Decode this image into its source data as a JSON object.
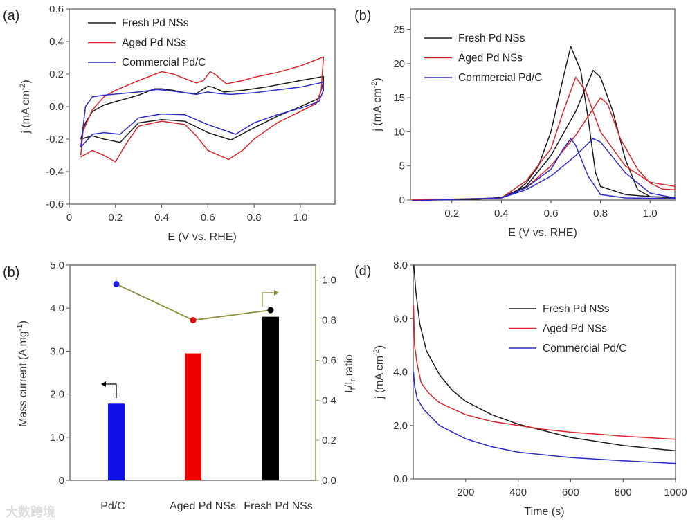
{
  "watermark": "大数跨境",
  "colors": {
    "fresh": "#1a1a1a",
    "aged": "#d8262b",
    "commercial": "#2a2ac8",
    "ratio_line": "#8c8c3c"
  },
  "chart_data": [
    {
      "panel_label": "(a)",
      "type": "line",
      "xlabel": "E (V vs. RHE)",
      "ylabel": "j (mA cm",
      "ylabel_sup": "-2",
      "ylabel_end": ")",
      "xlim": [
        0,
        1.15
      ],
      "ylim": [
        -0.6,
        0.6
      ],
      "xticks": [
        {
          "v": 0,
          "label": "0"
        },
        {
          "v": 0.2,
          "label": "0.2"
        },
        {
          "v": 0.4,
          "label": "0.4"
        },
        {
          "v": 0.6,
          "label": "0.6"
        },
        {
          "v": 0.8,
          "label": "0.8"
        },
        {
          "v": 1.0,
          "label": "1.0"
        }
      ],
      "yticks": [
        {
          "v": -0.6,
          "label": "-0.6"
        },
        {
          "v": -0.4,
          "label": "-0.4"
        },
        {
          "v": -0.2,
          "label": "-0.2"
        },
        {
          "v": 0,
          "label": "0.0"
        },
        {
          "v": 0.2,
          "label": "0.2"
        },
        {
          "v": 0.4,
          "label": "0.4"
        },
        {
          "v": 0.6,
          "label": "0.6"
        }
      ],
      "legend_position": "top-left",
      "series": [
        {
          "name": "Fresh Pd NSs",
          "color_key": "fresh",
          "points": [
            [
              0.05,
              -0.2
            ],
            [
              0.07,
              -0.1
            ],
            [
              0.1,
              -0.03
            ],
            [
              0.15,
              0.01
            ],
            [
              0.2,
              0.03
            ],
            [
              0.3,
              0.07
            ],
            [
              0.37,
              0.11
            ],
            [
              0.4,
              0.11
            ],
            [
              0.45,
              0.1
            ],
            [
              0.5,
              0.085
            ],
            [
              0.55,
              0.08
            ],
            [
              0.6,
              0.125
            ],
            [
              0.62,
              0.12
            ],
            [
              0.67,
              0.09
            ],
            [
              0.75,
              0.1
            ],
            [
              0.85,
              0.12
            ],
            [
              1.0,
              0.16
            ],
            [
              1.1,
              0.185
            ],
            [
              1.1,
              0.15
            ],
            [
              1.08,
              0.05
            ],
            [
              1.0,
              0.0
            ],
            [
              0.9,
              -0.06
            ],
            [
              0.8,
              -0.13
            ],
            [
              0.7,
              -0.205
            ],
            [
              0.6,
              -0.16
            ],
            [
              0.5,
              -0.09
            ],
            [
              0.4,
              -0.08
            ],
            [
              0.3,
              -0.1
            ],
            [
              0.22,
              -0.22
            ],
            [
              0.15,
              -0.2
            ],
            [
              0.1,
              -0.18
            ],
            [
              0.05,
              -0.2
            ]
          ]
        },
        {
          "name": "Aged Pd NSs",
          "color_key": "aged",
          "points": [
            [
              0.05,
              -0.3
            ],
            [
              0.06,
              -0.15
            ],
            [
              0.1,
              -0.02
            ],
            [
              0.15,
              0.06
            ],
            [
              0.2,
              0.1
            ],
            [
              0.3,
              0.16
            ],
            [
              0.4,
              0.215
            ],
            [
              0.45,
              0.2
            ],
            [
              0.55,
              0.145
            ],
            [
              0.58,
              0.16
            ],
            [
              0.61,
              0.215
            ],
            [
              0.63,
              0.2
            ],
            [
              0.68,
              0.14
            ],
            [
              0.75,
              0.16
            ],
            [
              0.8,
              0.18
            ],
            [
              0.9,
              0.21
            ],
            [
              1.0,
              0.25
            ],
            [
              1.1,
              0.305
            ],
            [
              1.1,
              0.3
            ],
            [
              1.09,
              0.1
            ],
            [
              1.07,
              0.02
            ],
            [
              1.0,
              -0.03
            ],
            [
              0.9,
              -0.1
            ],
            [
              0.8,
              -0.2
            ],
            [
              0.75,
              -0.27
            ],
            [
              0.69,
              -0.325
            ],
            [
              0.6,
              -0.27
            ],
            [
              0.55,
              -0.18
            ],
            [
              0.5,
              -0.11
            ],
            [
              0.4,
              -0.09
            ],
            [
              0.3,
              -0.12
            ],
            [
              0.25,
              -0.22
            ],
            [
              0.2,
              -0.34
            ],
            [
              0.15,
              -0.3
            ],
            [
              0.1,
              -0.27
            ],
            [
              0.05,
              -0.31
            ]
          ]
        },
        {
          "name": "Commercial Pd/C",
          "color_key": "commercial",
          "points": [
            [
              0.05,
              -0.25
            ],
            [
              0.07,
              0.0
            ],
            [
              0.1,
              0.06
            ],
            [
              0.15,
              0.07
            ],
            [
              0.3,
              0.09
            ],
            [
              0.38,
              0.105
            ],
            [
              0.45,
              0.095
            ],
            [
              0.55,
              0.075
            ],
            [
              0.6,
              0.09
            ],
            [
              0.65,
              0.08
            ],
            [
              0.7,
              0.075
            ],
            [
              0.8,
              0.085
            ],
            [
              1.0,
              0.12
            ],
            [
              1.1,
              0.15
            ],
            [
              1.1,
              0.1
            ],
            [
              1.08,
              0.03
            ],
            [
              1.0,
              -0.01
            ],
            [
              0.9,
              -0.05
            ],
            [
              0.8,
              -0.1
            ],
            [
              0.72,
              -0.17
            ],
            [
              0.6,
              -0.11
            ],
            [
              0.5,
              -0.05
            ],
            [
              0.4,
              -0.045
            ],
            [
              0.3,
              -0.07
            ],
            [
              0.22,
              -0.17
            ],
            [
              0.15,
              -0.16
            ],
            [
              0.1,
              -0.17
            ],
            [
              0.05,
              -0.25
            ]
          ]
        }
      ]
    },
    {
      "panel_label": "(b)",
      "type": "line",
      "xlabel": "E (V vs. RHE)",
      "ylabel": "j (mA cm",
      "ylabel_sup": "-2",
      "ylabel_end": ")",
      "xlim": [
        0.033,
        1.1
      ],
      "ylim": [
        0,
        28
      ],
      "xticks": [
        {
          "v": 0.2,
          "label": "0.2"
        },
        {
          "v": 0.4,
          "label": "0.4"
        },
        {
          "v": 0.6,
          "label": "0.6"
        },
        {
          "v": 0.8,
          "label": "0.8"
        },
        {
          "v": 1.0,
          "label": "1.0"
        }
      ],
      "yticks": [
        {
          "v": 0,
          "label": "0"
        },
        {
          "v": 5,
          "label": "5"
        },
        {
          "v": 10,
          "label": "10"
        },
        {
          "v": 15,
          "label": "15"
        },
        {
          "v": 20,
          "label": "20"
        },
        {
          "v": 25,
          "label": "25"
        }
      ],
      "legend_position": "top-left",
      "series": [
        {
          "name": "Fresh Pd NSs",
          "color_key": "fresh",
          "points": [
            [
              0.04,
              0
            ],
            [
              0.3,
              0.1
            ],
            [
              0.4,
              0.4
            ],
            [
              0.5,
              2
            ],
            [
              0.6,
              6.5
            ],
            [
              0.7,
              13
            ],
            [
              0.77,
              19
            ],
            [
              0.8,
              18
            ],
            [
              0.85,
              13
            ],
            [
              0.9,
              6
            ],
            [
              0.95,
              1.5
            ],
            [
              1.0,
              0.5
            ],
            [
              1.1,
              0.3
            ],
            [
              1.1,
              0.4
            ],
            [
              1.0,
              0.5
            ],
            [
              0.9,
              0.8
            ],
            [
              0.8,
              2
            ],
            [
              0.78,
              4
            ],
            [
              0.75,
              12
            ],
            [
              0.72,
              19
            ],
            [
              0.68,
              22.5
            ],
            [
              0.65,
              18
            ],
            [
              0.6,
              10
            ],
            [
              0.55,
              5
            ],
            [
              0.5,
              2.5
            ],
            [
              0.45,
              1
            ],
            [
              0.4,
              0.3
            ]
          ]
        },
        {
          "name": "Aged Pd NSs",
          "color_key": "aged",
          "points": [
            [
              0.04,
              0
            ],
            [
              0.4,
              0.3
            ],
            [
              0.5,
              1.8
            ],
            [
              0.6,
              5
            ],
            [
              0.7,
              9.5
            ],
            [
              0.8,
              15
            ],
            [
              0.83,
              14
            ],
            [
              0.88,
              9
            ],
            [
              0.95,
              4.5
            ],
            [
              1.0,
              2.5
            ],
            [
              1.05,
              1.6
            ],
            [
              1.1,
              1.5
            ],
            [
              1.1,
              2
            ],
            [
              1.0,
              2.6
            ],
            [
              0.9,
              5
            ],
            [
              0.8,
              10
            ],
            [
              0.74,
              16
            ],
            [
              0.7,
              18
            ],
            [
              0.65,
              13
            ],
            [
              0.6,
              7.5
            ],
            [
              0.5,
              2.8
            ],
            [
              0.4,
              0.3
            ]
          ]
        },
        {
          "name": "Commercial Pd/C",
          "color_key": "commercial",
          "points": [
            [
              0.04,
              -0.1
            ],
            [
              0.4,
              0.3
            ],
            [
              0.5,
              1.5
            ],
            [
              0.6,
              3.5
            ],
            [
              0.7,
              6.5
            ],
            [
              0.77,
              9
            ],
            [
              0.8,
              8.5
            ],
            [
              0.9,
              4
            ],
            [
              1.0,
              1
            ],
            [
              1.1,
              0.3
            ],
            [
              1.1,
              0.2
            ],
            [
              0.9,
              0.3
            ],
            [
              0.8,
              0.8
            ],
            [
              0.75,
              3.5
            ],
            [
              0.7,
              8
            ],
            [
              0.68,
              9
            ],
            [
              0.65,
              7.5
            ],
            [
              0.6,
              4.5
            ],
            [
              0.5,
              1.8
            ],
            [
              0.4,
              0.3
            ]
          ]
        }
      ]
    },
    {
      "panel_label": "(b)",
      "type": "bar",
      "categories": [
        "Pd/C",
        "Aged Pd NSs",
        "Fresh Pd NSs"
      ],
      "values": [
        1.78,
        2.95,
        3.8
      ],
      "bar_color_keys": [
        "commercial",
        "aged",
        "fresh"
      ],
      "ratio_values": [
        0.98,
        0.8,
        0.85
      ],
      "ylabel": "Mass current (A mg",
      "ylabel_sup": "-1",
      "ylabel_end": ")",
      "y2label_parts": [
        "I",
        "f",
        "/I",
        "r",
        " ratio"
      ],
      "ylim": [
        0,
        5.0
      ],
      "y2lim": [
        0,
        1.075
      ],
      "yticks": [
        {
          "v": 0,
          "label": "0"
        },
        {
          "v": 1,
          "label": "1.0"
        },
        {
          "v": 2,
          "label": "2.0"
        },
        {
          "v": 3,
          "label": "3.0"
        },
        {
          "v": 4,
          "label": "4.0"
        },
        {
          "v": 5,
          "label": "5.0"
        }
      ],
      "y2ticks": [
        {
          "v": 0,
          "label": "0.0"
        },
        {
          "v": 0.2,
          "label": "0.2"
        },
        {
          "v": 0.4,
          "label": "0.4"
        },
        {
          "v": 0.6,
          "label": "0.6"
        },
        {
          "v": 0.8,
          "label": "0.8"
        },
        {
          "v": 1.0,
          "label": "1.0"
        }
      ]
    },
    {
      "panel_label": "(d)",
      "type": "line",
      "xlabel": "Time (s)",
      "ylabel": "j (mA cm",
      "ylabel_sup": "-2",
      "ylabel_end": ")",
      "xlim": [
        0,
        1000
      ],
      "ylim": [
        0,
        8.0
      ],
      "xticks": [
        {
          "v": 200,
          "label": "200"
        },
        {
          "v": 400,
          "label": "400"
        },
        {
          "v": 600,
          "label": "600"
        },
        {
          "v": 800,
          "label": "800"
        },
        {
          "v": 1000,
          "label": "1000"
        }
      ],
      "yticks": [
        {
          "v": 0,
          "label": "0.0"
        },
        {
          "v": 2,
          "label": "2.0"
        },
        {
          "v": 4,
          "label": "4.0"
        },
        {
          "v": 6,
          "label": "6.0"
        },
        {
          "v": 8,
          "label": "8.0"
        }
      ],
      "legend_position": "top-right",
      "series": [
        {
          "name": "Fresh Pd NSs",
          "color_key": "fresh",
          "points": [
            [
              2,
              8
            ],
            [
              10,
              7
            ],
            [
              25,
              5.8
            ],
            [
              50,
              4.8
            ],
            [
              100,
              3.9
            ],
            [
              150,
              3.3
            ],
            [
              200,
              2.9
            ],
            [
              300,
              2.4
            ],
            [
              400,
              2.05
            ],
            [
              500,
              1.8
            ],
            [
              600,
              1.55
            ],
            [
              700,
              1.4
            ],
            [
              800,
              1.25
            ],
            [
              900,
              1.15
            ],
            [
              1000,
              1.05
            ]
          ]
        },
        {
          "name": "Aged Pd NSs",
          "color_key": "aged",
          "points": [
            [
              1,
              6.5
            ],
            [
              5,
              5
            ],
            [
              15,
              4.3
            ],
            [
              30,
              3.6
            ],
            [
              60,
              3.2
            ],
            [
              100,
              2.85
            ],
            [
              200,
              2.4
            ],
            [
              300,
              2.15
            ],
            [
              400,
              2.0
            ],
            [
              500,
              1.85
            ],
            [
              600,
              1.75
            ],
            [
              800,
              1.6
            ],
            [
              1000,
              1.48
            ]
          ]
        },
        {
          "name": "Commercial Pd/C",
          "color_key": "commercial",
          "points": [
            [
              1,
              4
            ],
            [
              5,
              3.5
            ],
            [
              15,
              3.0
            ],
            [
              40,
              2.6
            ],
            [
              100,
              2.0
            ],
            [
              200,
              1.5
            ],
            [
              300,
              1.2
            ],
            [
              400,
              1.0
            ],
            [
              600,
              0.8
            ],
            [
              800,
              0.68
            ],
            [
              1000,
              0.58
            ]
          ]
        }
      ]
    }
  ]
}
